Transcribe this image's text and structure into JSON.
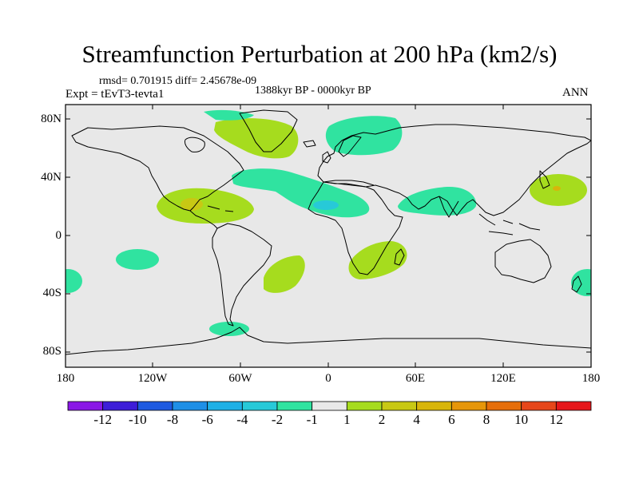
{
  "figure": {
    "title": "Streamfunction Perturbation at 200 hPa (km2/s)",
    "stats_line": "rmsd= 0.701915 diff= 2.45678e-09",
    "period": "1388kyr BP - 0000kyr BP",
    "experiment": "Expt = tEvT3-tevta1",
    "season": "ANN"
  },
  "map": {
    "projection": "cylindrical-equidistant",
    "lon_range": [
      -180,
      180
    ],
    "lat_range": [
      -90,
      90
    ],
    "lat_labels": [
      "80N",
      "40N",
      "0",
      "40S",
      "80S"
    ],
    "lon_labels": [
      "180",
      "120W",
      "60W",
      "0",
      "60E",
      "120E",
      "180"
    ],
    "background_color": "#e8e8e8",
    "anomaly_regions": [
      {
        "name": "north-america-high",
        "value": 1.5,
        "color": "#a6dc1e"
      },
      {
        "name": "north-atlantic-low",
        "value": -1.5,
        "color": "#30e3a0"
      },
      {
        "name": "barents-sea-low",
        "value": -1.5,
        "color": "#30e3a0"
      },
      {
        "name": "central-atlantic-low",
        "value": -1.5,
        "color": "#30e3a0"
      },
      {
        "name": "west-africa-core",
        "value": -2.5,
        "color": "#27c9d8"
      },
      {
        "name": "arabia-india-low",
        "value": -1.5,
        "color": "#30e3a0"
      },
      {
        "name": "gulf-mexico-high",
        "value": 1.5,
        "color": "#a6dc1e"
      },
      {
        "name": "gulf-mexico-core",
        "value": 2.5,
        "color": "#c8c814"
      },
      {
        "name": "north-pacific-high",
        "value": 1.5,
        "color": "#a6dc1e"
      },
      {
        "name": "north-pacific-core",
        "value": 2.5,
        "color": "#d8b50a"
      },
      {
        "name": "south-pacific-low",
        "value": -1.5,
        "color": "#30e3a0"
      },
      {
        "name": "south-atlantic-high",
        "value": 1.5,
        "color": "#a6dc1e"
      },
      {
        "name": "southern-africa-high",
        "value": 1.5,
        "color": "#a6dc1e"
      },
      {
        "name": "far-southwest-pacific-low",
        "value": -1.5,
        "color": "#30e3a0"
      },
      {
        "name": "far-southeast-pacific-low",
        "value": -1.5,
        "color": "#30e3a0"
      },
      {
        "name": "drake-passage-low",
        "value": -1.5,
        "color": "#30e3a0"
      }
    ]
  },
  "colorbar": {
    "colors": [
      "#8a18e6",
      "#3e1ed8",
      "#1e5ae0",
      "#1e8fe6",
      "#1eb0e6",
      "#27c9d8",
      "#30e3a0",
      "#e8e8e8",
      "#a6dc1e",
      "#c8c814",
      "#d8b50a",
      "#e6960a",
      "#e66e0a",
      "#e6461a",
      "#e6161a"
    ],
    "labels": [
      "-12",
      "-10",
      "-8",
      "-6",
      "-4",
      "-2",
      "-1",
      "1",
      "2",
      "4",
      "6",
      "8",
      "10",
      "12"
    ]
  }
}
